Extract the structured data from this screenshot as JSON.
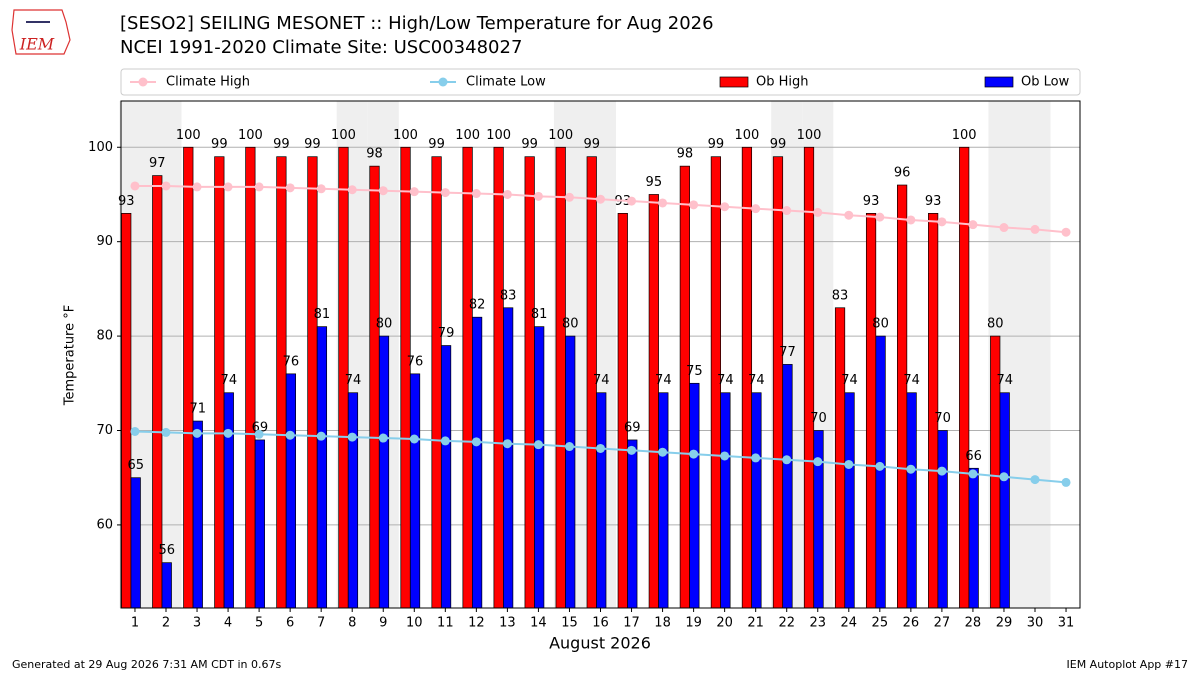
{
  "chart_data": {
    "type": "bar",
    "title": "[SESO2] SEILING MESONET :: High/Low Temperature for Aug 2026",
    "subtitle": "NCEI 1991-2020 Climate Site: USC00348027",
    "xlabel": "August 2026",
    "ylabel": "Temperature °F",
    "logo_text": "IEM",
    "footer_left": "Generated at 29 Aug 2026 7:31 AM CDT in 0.67s",
    "footer_right": "IEM Autoplot App #17",
    "categories": [
      1,
      2,
      3,
      4,
      5,
      6,
      7,
      8,
      9,
      10,
      11,
      12,
      13,
      14,
      15,
      16,
      17,
      18,
      19,
      20,
      21,
      22,
      23,
      24,
      25,
      26,
      27,
      28,
      29,
      30,
      31
    ],
    "xlim": [
      0.55,
      31.45
    ],
    "ylim": [
      51.2,
      104.9
    ],
    "yticks": [
      60,
      70,
      80,
      90,
      100
    ],
    "grid": true,
    "shaded_days": [
      1,
      2,
      8,
      9,
      15,
      16,
      22,
      23,
      29,
      30
    ],
    "series": [
      {
        "name": "Climate High",
        "type": "line",
        "color": "#ffc0cb",
        "values": [
          95.9,
          95.9,
          95.8,
          95.8,
          95.8,
          95.7,
          95.6,
          95.5,
          95.4,
          95.3,
          95.2,
          95.1,
          95.0,
          94.8,
          94.7,
          94.5,
          94.3,
          94.1,
          93.9,
          93.7,
          93.5,
          93.3,
          93.1,
          92.8,
          92.6,
          92.3,
          92.1,
          91.8,
          91.5,
          91.3,
          91.0
        ]
      },
      {
        "name": "Climate Low",
        "type": "line",
        "color": "#87ceeb",
        "values": [
          69.9,
          69.8,
          69.7,
          69.7,
          69.6,
          69.5,
          69.4,
          69.3,
          69.2,
          69.1,
          68.9,
          68.8,
          68.6,
          68.5,
          68.3,
          68.1,
          67.9,
          67.7,
          67.5,
          67.3,
          67.1,
          66.9,
          66.7,
          66.4,
          66.2,
          65.9,
          65.7,
          65.4,
          65.1,
          64.8,
          64.5
        ]
      },
      {
        "name": "Ob High",
        "type": "bar",
        "color": "#ff0000",
        "values": [
          93,
          97,
          100,
          99,
          100,
          99,
          99,
          100,
          98,
          100,
          99,
          100,
          100,
          99,
          100,
          99,
          93,
          95,
          98,
          99,
          100,
          99,
          100,
          83,
          93,
          96,
          93,
          100,
          80,
          null,
          null
        ]
      },
      {
        "name": "Ob Low",
        "type": "bar",
        "color": "#0000ff",
        "values": [
          65,
          56,
          71,
          74,
          69,
          76,
          81,
          74,
          80,
          76,
          79,
          82,
          83,
          81,
          80,
          74,
          69,
          74,
          75,
          74,
          74,
          77,
          70,
          74,
          80,
          74,
          70,
          66,
          74,
          null,
          null
        ]
      }
    ]
  }
}
